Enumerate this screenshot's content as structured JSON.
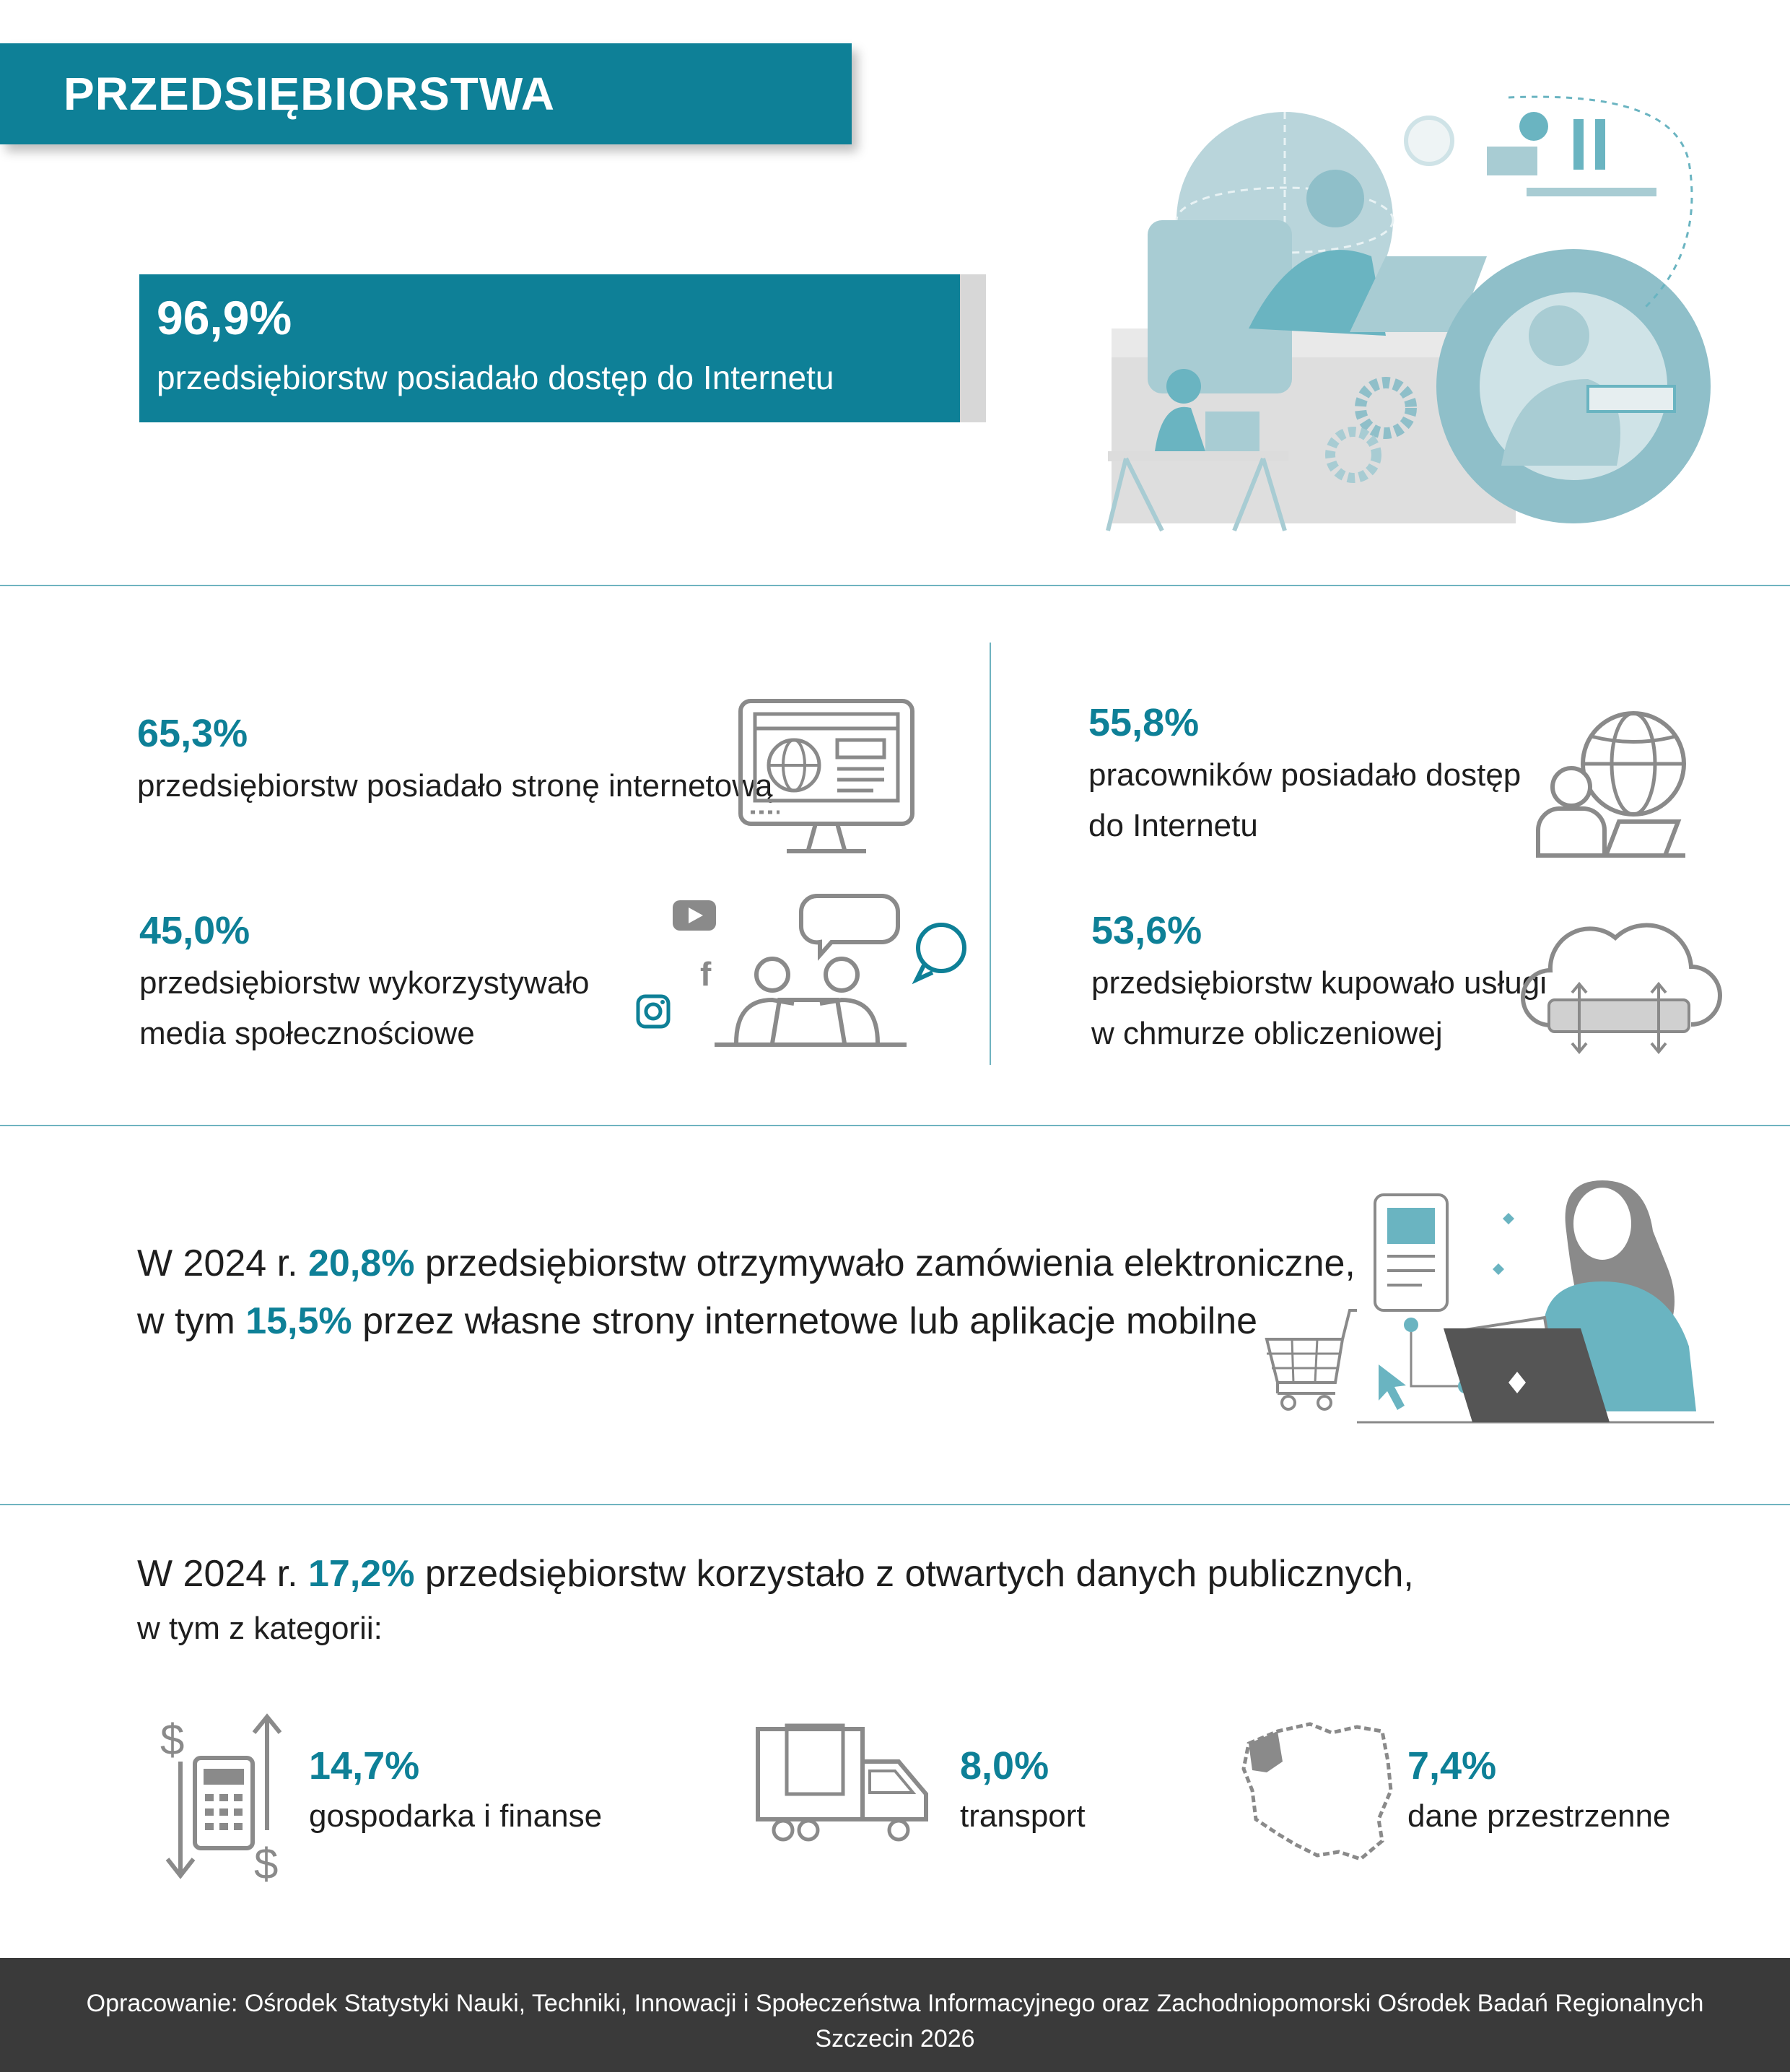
{
  "header": {
    "title": "PRZEDSIĘBIORSTWA"
  },
  "internet_access": {
    "value": "96,9%",
    "percent": 96.9,
    "label": "przedsiębiorstw posiadało dostęp do Internetu"
  },
  "stats": {
    "website": {
      "value": "65,3%",
      "label": "przedsiębiorstw posiadało stronę internetową"
    },
    "social_media": {
      "value": "45,0%",
      "line1": "przedsiębiorstw wykorzystywało",
      "line2": "media społecznościowe"
    },
    "employees_internet": {
      "value": "55,8%",
      "line1": "pracowników posiadało dostęp",
      "line2": "do Internetu"
    },
    "cloud": {
      "value": "53,6%",
      "line1": "przedsiębiorstw kupowało usługi",
      "line2": "w chmurze obliczeniowej"
    }
  },
  "orders": {
    "l1_pre": "W 2024 r. ",
    "l1_val": "20,8%",
    "l1_post": " przedsiębiorstw otrzymywało zamówienia elektroniczne,",
    "l2_pre": "w tym ",
    "l2_val": "15,5%",
    "l2_post": " przez własne strony internetowe lub aplikacje mobilne"
  },
  "open_data": {
    "l1_pre": "W 2024 r. ",
    "l1_val": "17,2%",
    "l1_post": " przedsiębiorstw korzystało z otwartych danych publicznych,",
    "l2": "w tym z kategorii:",
    "categories": [
      {
        "value": "14,7%",
        "label": "gospodarka i finanse",
        "icon": "finance-icon"
      },
      {
        "value": "8,0%",
        "label": "transport",
        "icon": "truck-icon"
      },
      {
        "value": "7,4%",
        "label": "dane przestrzenne",
        "icon": "poland-map-icon"
      }
    ]
  },
  "footer": {
    "line1": "Opracowanie: Ośrodek Statystyki Nauki, Techniki, Innowacji i Społeczeństwa Informacyjnego oraz Zachodniopomorski Ośrodek Badań Regionalnych",
    "line2": "Szczecin 2026"
  },
  "colors": {
    "accent": "#0e8097",
    "light_teal": "#6ab4c1",
    "grey": "#8a8a8a",
    "footer": "#3a3a3a"
  }
}
